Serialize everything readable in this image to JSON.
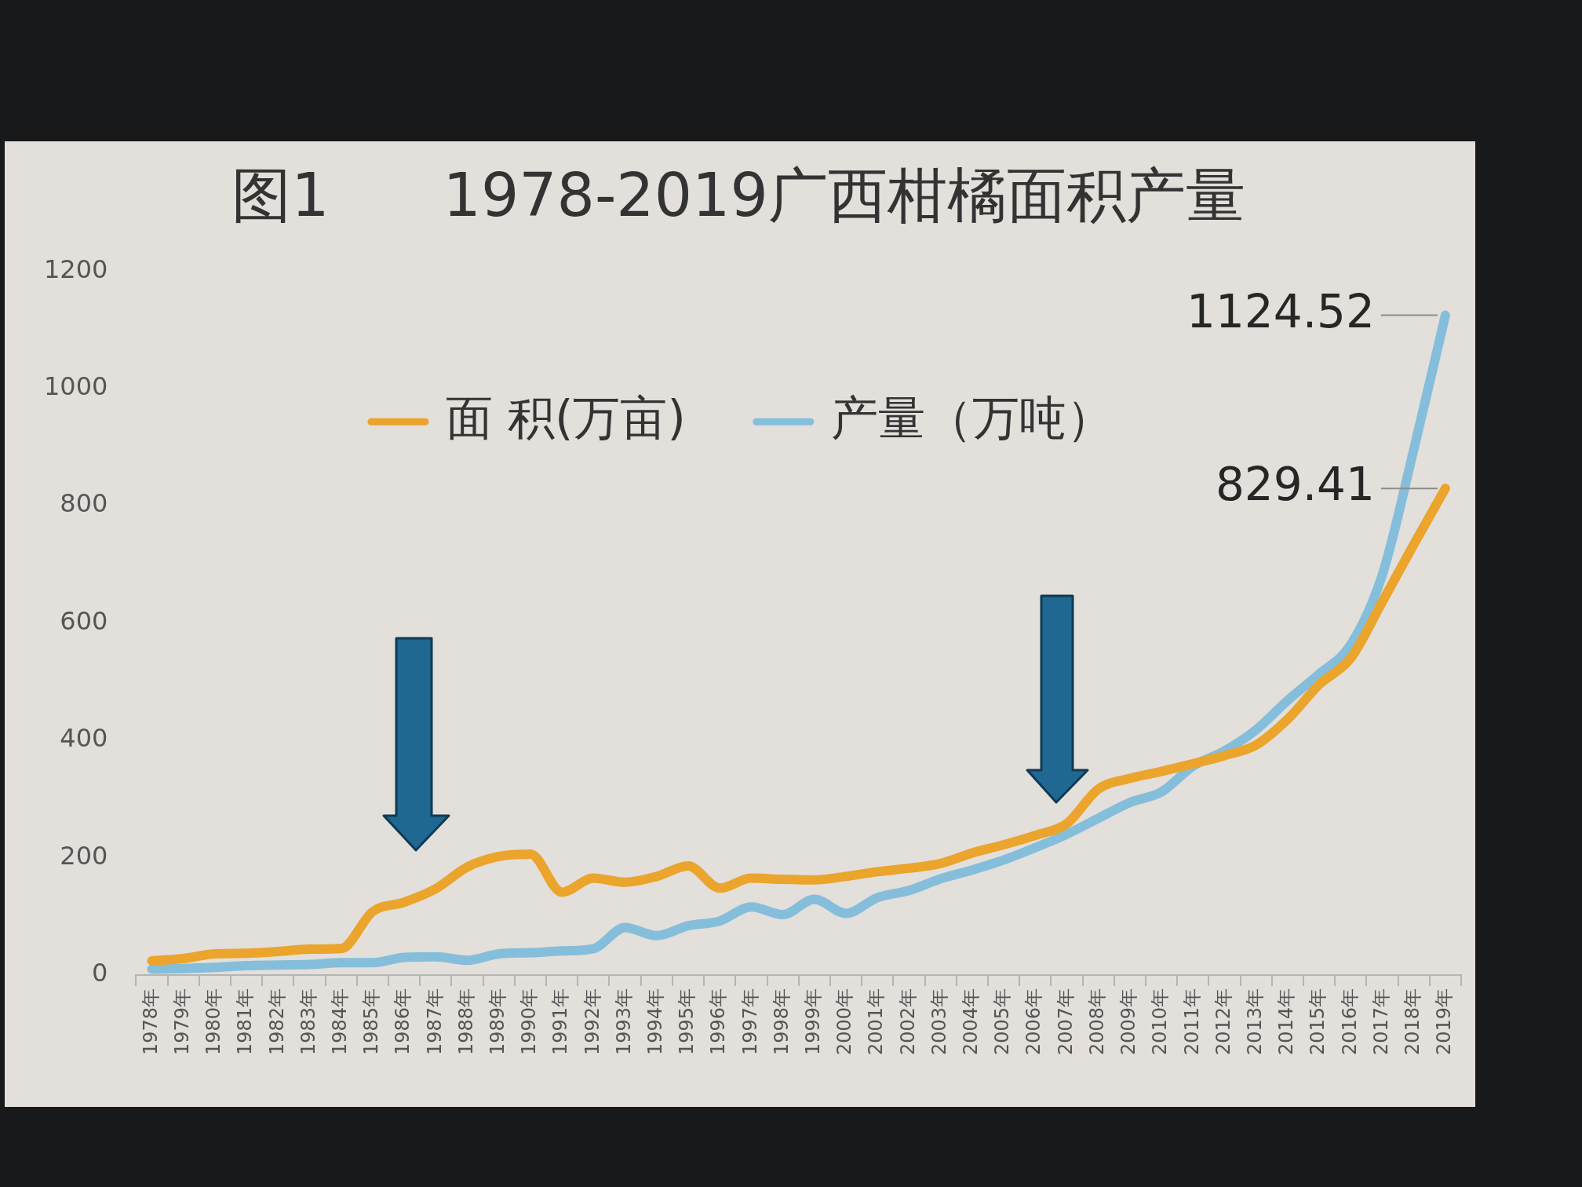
{
  "chart_data": {
    "type": "line",
    "title": "图1      1978-2019广西柑橘面积产量",
    "categories": [
      "1978年",
      "1979年",
      "1980年",
      "1981年",
      "1982年",
      "1983年",
      "1984年",
      "1985年",
      "1986年",
      "1987年",
      "1988年",
      "1989年",
      "1990年",
      "1991年",
      "1992年",
      "1993年",
      "1994年",
      "1995年",
      "1996年",
      "1997年",
      "1998年",
      "1999年",
      "2000年",
      "2001年",
      "2002年",
      "2003年",
      "2004年",
      "2005年",
      "2006年",
      "2007年",
      "2008年",
      "2009年",
      "2010年",
      "2011年",
      "2012年",
      "2013年",
      "2014年",
      "2015年",
      "2016年",
      "2017年",
      "2018年",
      "2019年"
    ],
    "series": [
      {
        "name": "面 积(万亩)",
        "color": "#eba42c",
        "values": [
          24,
          28,
          36,
          37,
          40,
          44,
          45,
          108,
          124,
          147,
          184,
          202,
          206,
          141,
          165,
          158,
          168,
          186,
          148,
          165,
          163,
          162,
          168,
          176,
          182,
          190,
          208,
          222,
          238,
          258,
          317,
          335,
          347,
          360,
          374,
          392,
          436,
          495,
          540,
          636,
          734,
          829.41
        ],
        "value_labels": [
          null,
          null,
          null,
          null,
          null,
          null,
          null,
          null,
          null,
          null,
          null,
          null,
          null,
          null,
          null,
          null,
          null,
          null,
          null,
          null,
          null,
          null,
          null,
          null,
          null,
          null,
          null,
          null,
          null,
          null,
          null,
          null,
          null,
          null,
          null,
          null,
          null,
          null,
          null,
          null,
          null,
          "829.41"
        ]
      },
      {
        "name": "产量（万吨）",
        "color": "#85bedb",
        "values": [
          10,
          11,
          13,
          16,
          17,
          18,
          21,
          21,
          30,
          31,
          25,
          36,
          38,
          41,
          45,
          81,
          67,
          84,
          92,
          116,
          103,
          129,
          105,
          132,
          144,
          164,
          179,
          196,
          217,
          240,
          267,
          294,
          312,
          356,
          382,
          418,
          468,
          513,
          563,
          682,
          896,
          1124.52
        ],
        "value_labels": [
          null,
          null,
          null,
          null,
          null,
          null,
          null,
          null,
          null,
          null,
          null,
          null,
          null,
          null,
          null,
          null,
          null,
          null,
          null,
          null,
          null,
          null,
          null,
          null,
          null,
          null,
          null,
          null,
          null,
          null,
          null,
          null,
          null,
          null,
          null,
          null,
          null,
          null,
          null,
          null,
          null,
          "1124.52"
        ]
      }
    ],
    "ylim": [
      0,
      1200
    ],
    "yticks": [
      0,
      200,
      400,
      600,
      800,
      1000,
      1200
    ],
    "legend": "top"
  }
}
